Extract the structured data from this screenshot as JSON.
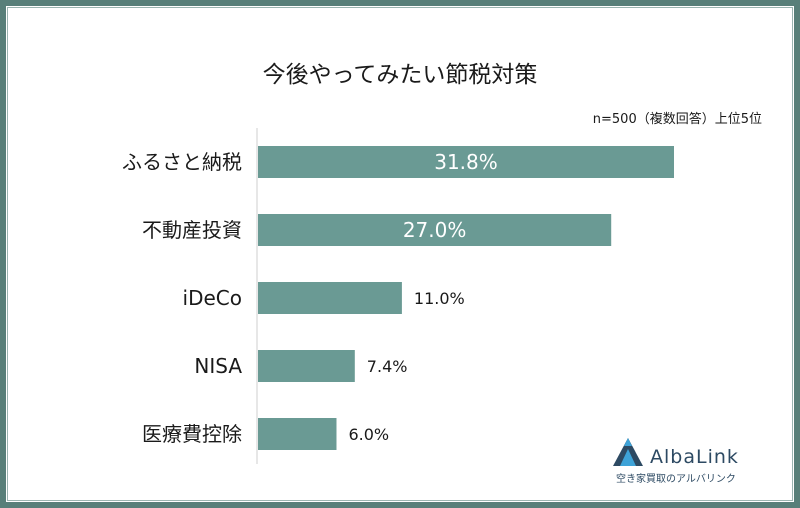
{
  "chart_data": {
    "type": "bar",
    "orientation": "horizontal",
    "title": "今後やってみたい節税対策",
    "note": "n=500（複数回答）上位5位",
    "categories": [
      "ふるさと納税",
      "不動産投資",
      "iDeCo",
      "NISA",
      "医療費控除"
    ],
    "values": [
      31.8,
      27.0,
      11.0,
      7.4,
      6.0
    ],
    "value_labels": [
      "31.8%",
      "27.0%",
      "11.0%",
      "7.4%",
      "6.0%"
    ],
    "xlim": [
      0,
      40
    ],
    "bar_color": "#6a9a94",
    "grid": false
  },
  "brand": {
    "name": "AlbaLink",
    "tagline": "空き家買取のアルバリンク",
    "logo_icon": "triangle-logo-icon",
    "colors": {
      "dark": "#2d4a63",
      "light": "#3ea3d8"
    }
  }
}
